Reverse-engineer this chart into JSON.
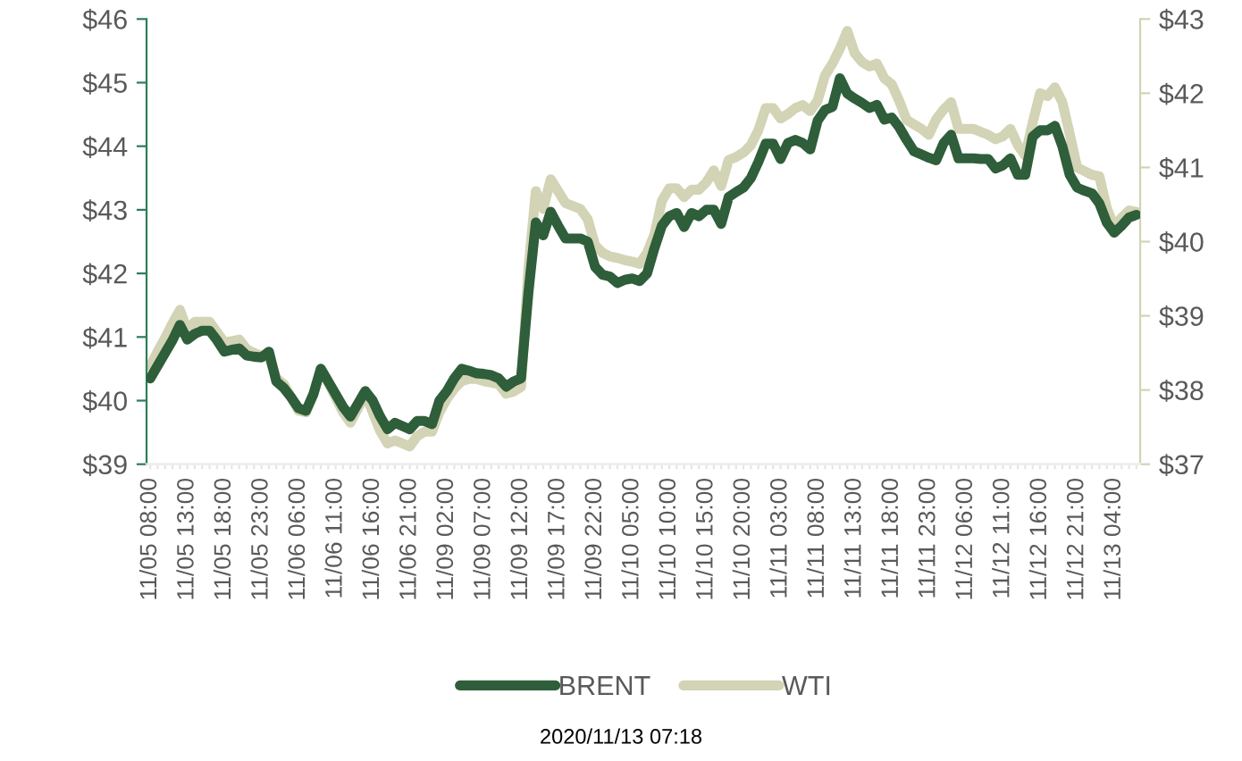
{
  "chart_data": {
    "type": "line",
    "categories": [
      "11/05 08:00",
      null,
      null,
      null,
      null,
      "11/05 13:00",
      null,
      null,
      null,
      null,
      "11/05 18:00",
      null,
      null,
      null,
      null,
      "11/05 23:00",
      null,
      null,
      null,
      null,
      "11/06 06:00",
      null,
      null,
      null,
      null,
      "11/06 11:00",
      null,
      null,
      null,
      null,
      "11/06 16:00",
      null,
      null,
      null,
      null,
      "11/06 21:00",
      null,
      null,
      null,
      null,
      "11/09 02:00",
      null,
      null,
      null,
      null,
      "11/09 07:00",
      null,
      null,
      null,
      null,
      "11/09 12:00",
      null,
      null,
      null,
      null,
      "11/09 17:00",
      null,
      null,
      null,
      null,
      "11/09 22:00",
      null,
      null,
      null,
      null,
      "11/10 05:00",
      null,
      null,
      null,
      null,
      "11/10 10:00",
      null,
      null,
      null,
      null,
      "11/10 15:00",
      null,
      null,
      null,
      null,
      "11/10 20:00",
      null,
      null,
      null,
      null,
      "11/11 03:00",
      null,
      null,
      null,
      null,
      "11/11 08:00",
      null,
      null,
      null,
      null,
      "11/11 13:00",
      null,
      null,
      null,
      null,
      "11/11 18:00",
      null,
      null,
      null,
      null,
      "11/11 23:00",
      null,
      null,
      null,
      null,
      "11/12 06:00",
      null,
      null,
      null,
      null,
      "11/12 11:00",
      null,
      null,
      null,
      null,
      "11/12 16:00",
      null,
      null,
      null,
      null,
      "11/12 21:00",
      null,
      null,
      null,
      null,
      "11/13 04:00",
      null,
      null,
      null
    ],
    "series": [
      {
        "name": "BRENT",
        "color": "#2e5e3a",
        "values": [
          40.35,
          40.55,
          40.75,
          40.95,
          41.19,
          40.96,
          41.05,
          41.1,
          41.1,
          40.95,
          40.77,
          40.8,
          40.82,
          40.71,
          40.69,
          40.68,
          40.77,
          40.3,
          40.2,
          40.05,
          39.88,
          39.84,
          40.1,
          40.5,
          40.3,
          40.1,
          39.9,
          39.75,
          39.95,
          40.15,
          40.0,
          39.75,
          39.55,
          39.65,
          39.6,
          39.55,
          39.68,
          39.68,
          39.63,
          40.0,
          40.15,
          40.35,
          40.5,
          40.47,
          40.43,
          40.42,
          40.4,
          40.35,
          40.22,
          40.3,
          40.35,
          41.7,
          42.8,
          42.6,
          42.97,
          42.75,
          42.55,
          42.55,
          42.55,
          42.5,
          42.1,
          41.98,
          41.95,
          41.85,
          41.9,
          41.92,
          41.88,
          42.0,
          42.4,
          42.75,
          42.9,
          42.95,
          42.73,
          42.95,
          42.9,
          43.0,
          43.0,
          42.78,
          43.2,
          43.28,
          43.35,
          43.5,
          43.75,
          44.04,
          44.04,
          43.8,
          44.05,
          44.1,
          44.05,
          43.95,
          44.4,
          44.57,
          44.62,
          45.07,
          44.83,
          44.75,
          44.68,
          44.6,
          44.65,
          44.42,
          44.45,
          44.3,
          44.1,
          43.92,
          43.87,
          43.82,
          43.78,
          44.05,
          44.18,
          43.81,
          43.81,
          43.81,
          43.8,
          43.8,
          43.65,
          43.7,
          43.81,
          43.55,
          43.55,
          44.15,
          44.25,
          44.25,
          44.32,
          44.0,
          43.55,
          43.35,
          43.3,
          43.26,
          43.1,
          42.8,
          42.64,
          42.75,
          42.88,
          42.92
        ]
      },
      {
        "name": "WTI",
        "color": "#d3d3b5",
        "axis": "y2",
        "values": [
          38.32,
          38.52,
          38.7,
          38.9,
          39.08,
          38.8,
          38.92,
          38.92,
          38.92,
          38.78,
          38.64,
          38.66,
          38.68,
          38.55,
          38.5,
          38.46,
          38.44,
          38.16,
          38.08,
          37.9,
          37.72,
          37.7,
          37.95,
          38.28,
          38.1,
          37.9,
          37.7,
          37.56,
          37.75,
          37.96,
          37.7,
          37.45,
          37.28,
          37.32,
          37.28,
          37.24,
          37.38,
          37.44,
          37.44,
          37.7,
          37.88,
          38.02,
          38.12,
          38.15,
          38.15,
          38.12,
          38.1,
          38.08,
          37.95,
          37.98,
          38.04,
          39.64,
          40.68,
          40.44,
          40.84,
          40.68,
          40.52,
          40.48,
          40.44,
          40.3,
          39.95,
          39.85,
          39.8,
          39.78,
          39.75,
          39.73,
          39.7,
          39.85,
          40.1,
          40.55,
          40.72,
          40.72,
          40.6,
          40.7,
          40.7,
          40.8,
          40.96,
          40.75,
          41.1,
          41.14,
          41.2,
          41.3,
          41.5,
          41.8,
          41.8,
          41.66,
          41.72,
          41.8,
          41.84,
          41.76,
          41.9,
          42.24,
          42.4,
          42.6,
          42.84,
          42.54,
          42.42,
          42.36,
          42.4,
          42.2,
          42.12,
          41.9,
          41.64,
          41.58,
          41.52,
          41.44,
          41.65,
          41.78,
          41.88,
          41.52,
          41.52,
          41.52,
          41.48,
          41.44,
          41.38,
          41.42,
          41.52,
          41.3,
          41.16,
          41.6,
          42.0,
          41.96,
          42.08,
          41.88,
          41.45,
          41.0,
          40.95,
          40.9,
          40.88,
          40.45,
          40.2,
          40.32,
          40.42,
          40.4
        ]
      }
    ],
    "ylim": [
      39,
      46
    ],
    "yticks": [
      {
        "value": 39,
        "label": "$39"
      },
      {
        "value": 40,
        "label": "$40"
      },
      {
        "value": 41,
        "label": "$41"
      },
      {
        "value": 42,
        "label": "$42"
      },
      {
        "value": 43,
        "label": "$43"
      },
      {
        "value": 44,
        "label": "$44"
      },
      {
        "value": 45,
        "label": "$45"
      },
      {
        "value": 46,
        "label": "$46"
      }
    ],
    "y2lim": [
      37,
      43
    ],
    "y2ticks": [
      {
        "value": 37,
        "label": "$37"
      },
      {
        "value": 38,
        "label": "$38"
      },
      {
        "value": 39,
        "label": "$39"
      },
      {
        "value": 40,
        "label": "$40"
      },
      {
        "value": 41,
        "label": "$41"
      },
      {
        "value": 42,
        "label": "$42"
      },
      {
        "value": 43,
        "label": "$43"
      }
    ],
    "grid": false,
    "legend": "bottom",
    "marker": "none",
    "line_style": "solid",
    "annotations": [
      "2020/11/13 07:18"
    ]
  }
}
